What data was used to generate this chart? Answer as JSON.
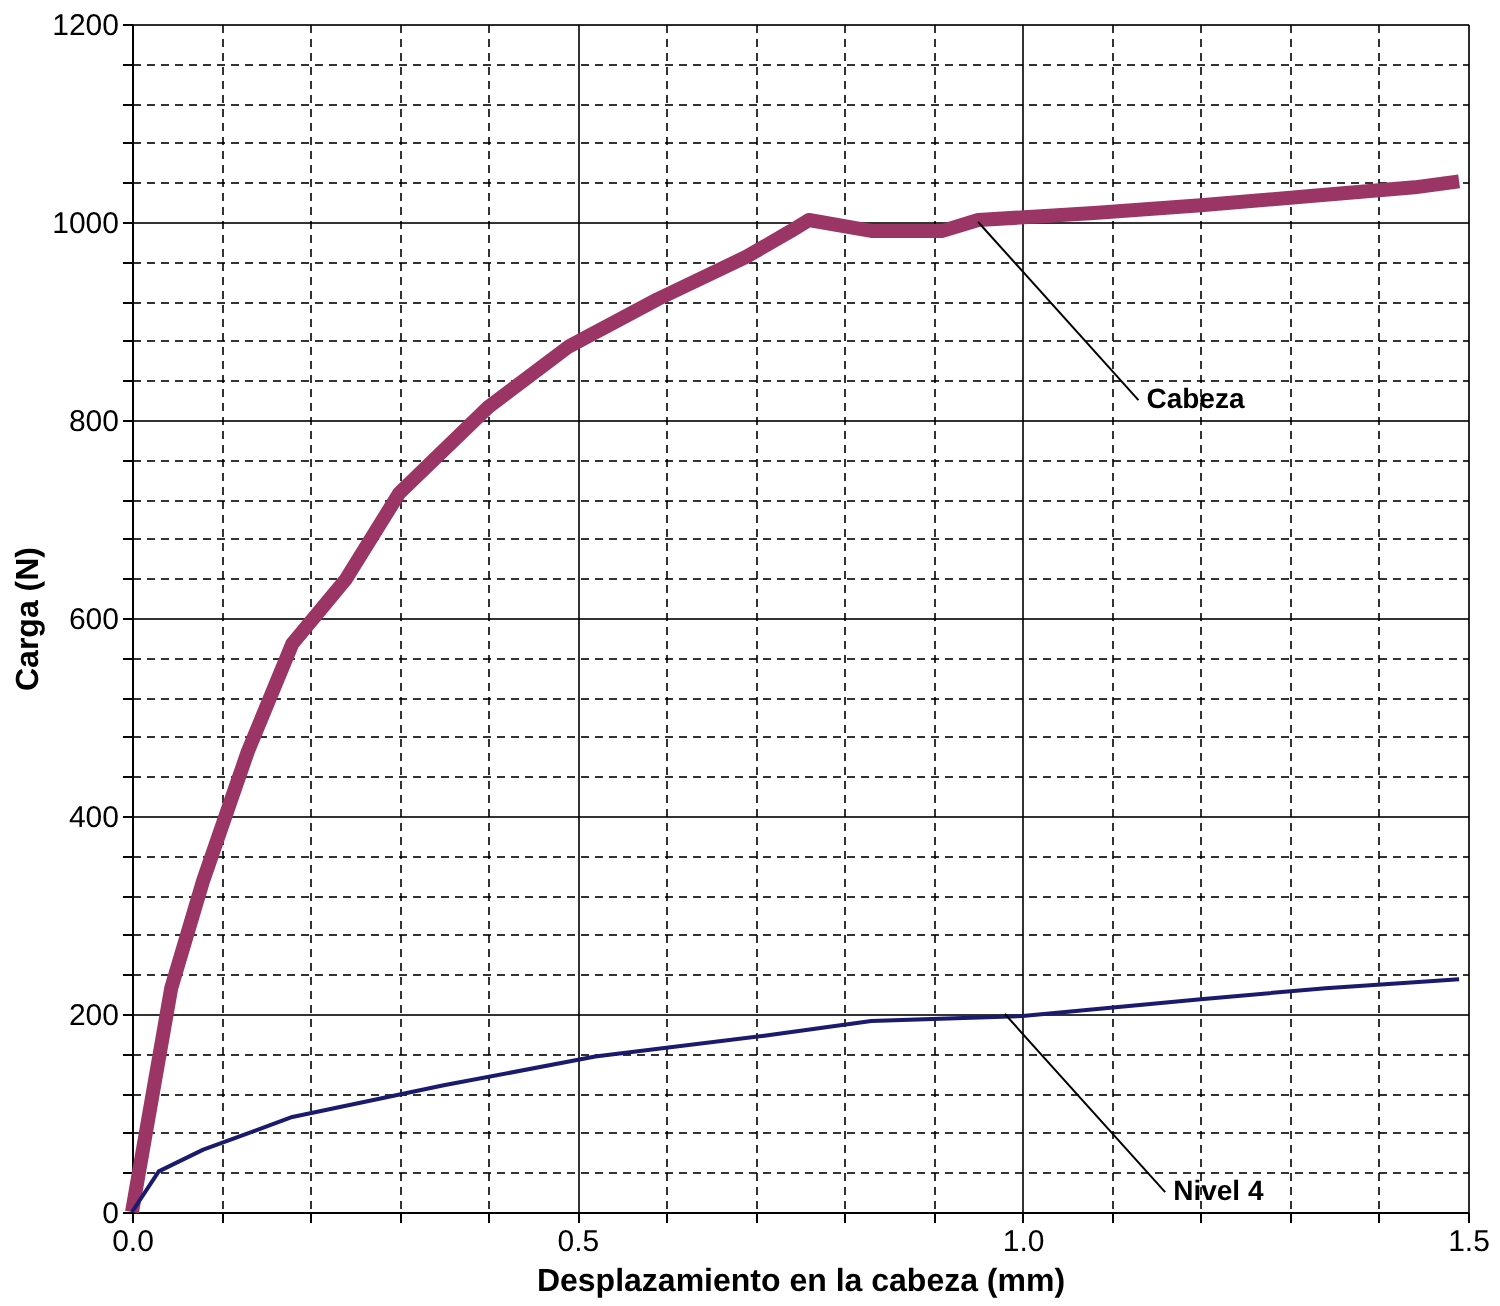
{
  "chart_data": {
    "type": "line",
    "xlabel": "Desplazamiento en la cabeza (mm)",
    "ylabel": "Carga (N)",
    "xlim": [
      0,
      1.5
    ],
    "ylim": [
      0,
      1200
    ],
    "xticks": [
      {
        "value": 0,
        "label": "0.0"
      },
      {
        "value": 0.1,
        "label": null
      },
      {
        "value": 0.2,
        "label": null
      },
      {
        "value": 0.3,
        "label": null
      },
      {
        "value": 0.4,
        "label": null
      },
      {
        "value": 0.5,
        "label": "0.5"
      },
      {
        "value": 0.6,
        "label": null
      },
      {
        "value": 0.7,
        "label": null
      },
      {
        "value": 0.8,
        "label": null
      },
      {
        "value": 0.9,
        "label": null
      },
      {
        "value": 1.0,
        "label": "1.0"
      },
      {
        "value": 1.1,
        "label": null
      },
      {
        "value": 1.2,
        "label": null
      },
      {
        "value": 1.3,
        "label": null
      },
      {
        "value": 1.4,
        "label": null
      },
      {
        "value": 1.5,
        "label": "1.5"
      }
    ],
    "yticks": [
      0,
      {
        "value": 40,
        "label": null
      },
      {
        "value": 80,
        "label": null
      },
      {
        "value": 120,
        "label": null
      },
      {
        "value": 160,
        "label": null
      },
      200,
      {
        "value": 240,
        "label": null
      },
      {
        "value": 280,
        "label": null
      },
      {
        "value": 320,
        "label": null
      },
      {
        "value": 360,
        "label": null
      },
      400,
      {
        "value": 440,
        "label": null
      },
      {
        "value": 480,
        "label": null
      },
      {
        "value": 520,
        "label": null
      },
      {
        "value": 560,
        "label": null
      },
      600,
      {
        "value": 640,
        "label": null
      },
      {
        "value": 680,
        "label": null
      },
      {
        "value": 720,
        "label": null
      },
      {
        "value": 760,
        "label": null
      },
      800,
      {
        "value": 840,
        "label": null
      },
      {
        "value": 880,
        "label": null
      },
      {
        "value": 920,
        "label": null
      },
      {
        "value": 960,
        "label": null
      },
      1000,
      {
        "value": 1040,
        "label": null
      },
      {
        "value": 1080,
        "label": null
      },
      {
        "value": 1120,
        "label": null
      },
      {
        "value": 1160,
        "label": null
      },
      1200
    ],
    "grid": true,
    "marker": "none",
    "line_style": "solid",
    "series": [
      {
        "color": "#9b3566",
        "x": [
          0,
          0.044,
          0.08,
          0.13,
          0.18,
          0.24,
          0.3,
          0.4,
          0.49,
          0.59,
          0.69,
          0.74,
          0.76,
          0.83,
          0.91,
          0.95,
          1.08,
          1.2,
          1.32,
          1.44,
          1.49
        ],
        "values": [
          0,
          226,
          335,
          465,
          574,
          639,
          726,
          813,
          874,
          922,
          965,
          991,
          1002,
          991,
          991,
          1002,
          1009,
          1017,
          1026,
          1035,
          1041
        ]
      },
      {
        "color": "#1a1a6e",
        "x": [
          0,
          0.03,
          0.08,
          0.18,
          0.35,
          0.52,
          0.71,
          0.83,
          1.0,
          1.2,
          1.34,
          1.49
        ],
        "values": [
          0,
          41,
          63,
          96,
          128,
          157,
          178,
          193,
          198,
          215,
          226,
          235
        ]
      }
    ],
    "annotations": [
      {
        "text": "Cabeza",
        "x": 0.95,
        "y": 1000
      },
      {
        "text": "Nivel 4",
        "x": 0.98,
        "y": 200
      }
    ]
  }
}
